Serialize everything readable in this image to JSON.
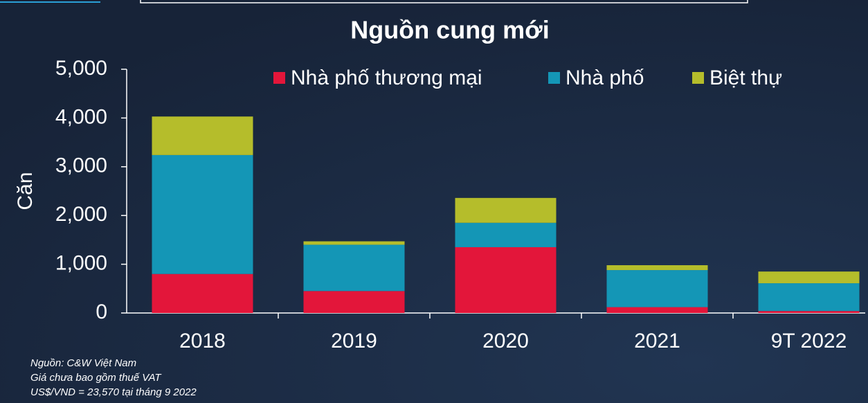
{
  "chart_data": {
    "type": "stacked_bar",
    "title": "Nguồn cung mới",
    "y_label": "Căn",
    "categories": [
      "2018",
      "2019",
      "2020",
      "2021",
      "9T 2022"
    ],
    "series": [
      {
        "name": "Nhà phố thương mại",
        "color": "#e3163a",
        "values": [
          800,
          450,
          1350,
          120,
          40
        ]
      },
      {
        "name": "Nhà phố",
        "color": "#1496b6",
        "values": [
          2440,
          950,
          500,
          760,
          570
        ]
      },
      {
        "name": "Biệt thự",
        "color": "#b5bd2b",
        "values": [
          790,
          70,
          510,
          100,
          240
        ]
      }
    ],
    "ylim": [
      0,
      5000
    ],
    "yticks": [
      0,
      {
        "value": 1000,
        "label": "1,000"
      },
      {
        "value": 2000,
        "label": "2,000"
      },
      {
        "value": 3000,
        "label": "3,000"
      },
      {
        "value": 4000,
        "label": "4,000"
      },
      {
        "value": 5000,
        "label": "5,000"
      }
    ],
    "grid": false,
    "legend": "top",
    "notes": [
      "Nguồn: C&W Việt Nam",
      "Giá chưa bao gồm thuế VAT",
      "US$/VND = 23,570 tại tháng 9 2022"
    ]
  }
}
